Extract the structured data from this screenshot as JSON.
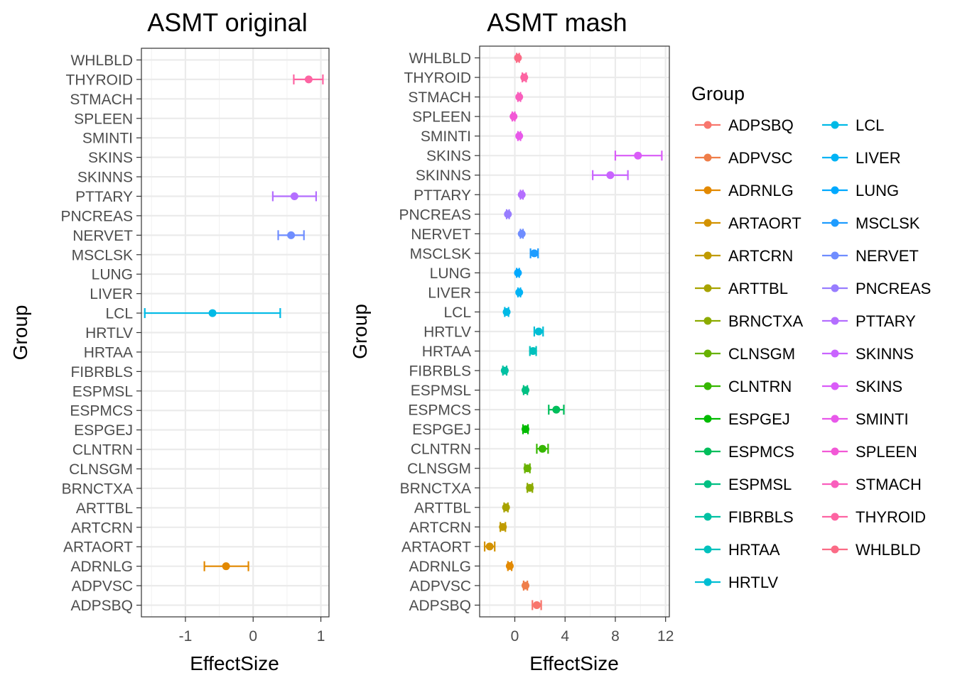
{
  "chart_data": [
    {
      "type": "scatter",
      "title": "ASMT original",
      "xlabel": "EffectSize",
      "ylabel": "Group",
      "xlim": [
        -1.65,
        1.12
      ],
      "xticks": [
        -1,
        0,
        1
      ],
      "xtick_labels": [
        "-1",
        "0",
        "1"
      ],
      "categories": [
        "ADPSBQ",
        "ADPVSC",
        "ADRNLG",
        "ARTAORT",
        "ARTCRN",
        "ARTTBL",
        "BRNCTXA",
        "CLNSGM",
        "CLNTRN",
        "ESPGEJ",
        "ESPMCS",
        "ESPMSL",
        "FIBRBLS",
        "HRTAA",
        "HRTLV",
        "LCL",
        "LIVER",
        "LUNG",
        "MSCLSK",
        "NERVET",
        "PNCREAS",
        "PTTARY",
        "SKINNS",
        "SKINS",
        "SMINTI",
        "SPLEEN",
        "STMACH",
        "THYROID",
        "WHLBLD"
      ],
      "points": [
        {
          "group": "ADRNLG",
          "value": -0.4,
          "lo": -0.72,
          "hi": -0.07
        },
        {
          "group": "LCL",
          "value": -0.6,
          "lo": -1.6,
          "hi": 0.4
        },
        {
          "group": "NERVET",
          "value": 0.56,
          "lo": 0.37,
          "hi": 0.75
        },
        {
          "group": "PTTARY",
          "value": 0.61,
          "lo": 0.29,
          "hi": 0.93
        },
        {
          "group": "THYROID",
          "value": 0.82,
          "lo": 0.6,
          "hi": 1.03
        }
      ]
    },
    {
      "type": "scatter",
      "title": "ASMT mash",
      "xlabel": "EffectSize",
      "ylabel": "Group",
      "xlim": [
        -2.8,
        12.3
      ],
      "xticks": [
        0,
        4,
        8,
        12
      ],
      "xtick_labels": [
        "0",
        "4",
        "8",
        "12"
      ],
      "categories": [
        "ADPSBQ",
        "ADPVSC",
        "ADRNLG",
        "ARTAORT",
        "ARTCRN",
        "ARTTBL",
        "BRNCTXA",
        "CLNSGM",
        "CLNTRN",
        "ESPGEJ",
        "ESPMCS",
        "ESPMSL",
        "FIBRBLS",
        "HRTAA",
        "HRTLV",
        "LCL",
        "LIVER",
        "LUNG",
        "MSCLSK",
        "NERVET",
        "PNCREAS",
        "PTTARY",
        "SKINNS",
        "SKINS",
        "SMINTI",
        "SPLEEN",
        "STMACH",
        "THYROID",
        "WHLBLD"
      ],
      "points": [
        {
          "group": "ADPSBQ",
          "value": 1.75,
          "lo": 1.4,
          "hi": 2.1
        },
        {
          "group": "ADPVSC",
          "value": 0.85,
          "lo": 0.7,
          "hi": 1.0
        },
        {
          "group": "ADRNLG",
          "value": -0.4,
          "lo": -0.55,
          "hi": -0.25
        },
        {
          "group": "ARTAORT",
          "value": -2.0,
          "lo": -2.4,
          "hi": -1.6
        },
        {
          "group": "ARTCRN",
          "value": -0.95,
          "lo": -1.15,
          "hi": -0.75
        },
        {
          "group": "ARTTBL",
          "value": -0.7,
          "lo": -0.85,
          "hi": -0.55
        },
        {
          "group": "BRNCTXA",
          "value": 1.2,
          "lo": 1.0,
          "hi": 1.4
        },
        {
          "group": "CLNSGM",
          "value": 1.0,
          "lo": 0.8,
          "hi": 1.2
        },
        {
          "group": "CLNTRN",
          "value": 2.2,
          "lo": 1.75,
          "hi": 2.65
        },
        {
          "group": "ESPGEJ",
          "value": 0.85,
          "lo": 0.65,
          "hi": 1.05
        },
        {
          "group": "ESPMCS",
          "value": 3.3,
          "lo": 2.7,
          "hi": 3.9
        },
        {
          "group": "ESPMSL",
          "value": 0.85,
          "lo": 0.7,
          "hi": 1.0
        },
        {
          "group": "FIBRBLS",
          "value": -0.8,
          "lo": -0.95,
          "hi": -0.65
        },
        {
          "group": "HRTAA",
          "value": 1.45,
          "lo": 1.2,
          "hi": 1.7
        },
        {
          "group": "HRTLV",
          "value": 1.9,
          "lo": 1.55,
          "hi": 2.25
        },
        {
          "group": "LCL",
          "value": -0.65,
          "lo": -0.8,
          "hi": -0.5
        },
        {
          "group": "LIVER",
          "value": 0.35,
          "lo": 0.25,
          "hi": 0.45
        },
        {
          "group": "LUNG",
          "value": 0.25,
          "lo": 0.15,
          "hi": 0.35
        },
        {
          "group": "MSCLSK",
          "value": 1.55,
          "lo": 1.25,
          "hi": 1.85
        },
        {
          "group": "NERVET",
          "value": 0.55,
          "lo": 0.45,
          "hi": 0.65
        },
        {
          "group": "PNCREAS",
          "value": -0.55,
          "lo": -0.65,
          "hi": -0.45
        },
        {
          "group": "PTTARY",
          "value": 0.55,
          "lo": 0.45,
          "hi": 0.65
        },
        {
          "group": "SKINNS",
          "value": 7.6,
          "lo": 6.2,
          "hi": 9.0
        },
        {
          "group": "SKINS",
          "value": 9.8,
          "lo": 8.0,
          "hi": 11.7
        },
        {
          "group": "SMINTI",
          "value": 0.35,
          "lo": 0.25,
          "hi": 0.45
        },
        {
          "group": "SPLEEN",
          "value": -0.1,
          "lo": -0.2,
          "hi": 0.0
        },
        {
          "group": "STMACH",
          "value": 0.35,
          "lo": 0.25,
          "hi": 0.45
        },
        {
          "group": "THYROID",
          "value": 0.75,
          "lo": 0.6,
          "hi": 0.9
        },
        {
          "group": "WHLBLD",
          "value": 0.25,
          "lo": 0.15,
          "hi": 0.35
        }
      ]
    }
  ],
  "legend": {
    "title": "Group",
    "placement": "right",
    "items": [
      {
        "label": "ADPSBQ",
        "color": "#F8766D"
      },
      {
        "label": "ADPVSC",
        "color": "#EF7E49"
      },
      {
        "label": "ADRNLG",
        "color": "#E38900"
      },
      {
        "label": "ARTAORT",
        "color": "#D39200"
      },
      {
        "label": "ARTCRN",
        "color": "#C09B00"
      },
      {
        "label": "ARTTBL",
        "color": "#A8A300"
      },
      {
        "label": "BRNCTXA",
        "color": "#8CAB00"
      },
      {
        "label": "CLNSGM",
        "color": "#68B200"
      },
      {
        "label": "CLNTRN",
        "color": "#36B700"
      },
      {
        "label": "ESPGEJ",
        "color": "#00BB00"
      },
      {
        "label": "ESPMCS",
        "color": "#00BE5B"
      },
      {
        "label": "ESPMSL",
        "color": "#00C083"
      },
      {
        "label": "FIBRBLS",
        "color": "#00C1A3"
      },
      {
        "label": "HRTAA",
        "color": "#00C1BD"
      },
      {
        "label": "HRTLV",
        "color": "#00BED4"
      },
      {
        "label": "LCL",
        "color": "#00BAE6"
      },
      {
        "label": "LIVER",
        "color": "#00B3F5"
      },
      {
        "label": "LUNG",
        "color": "#00A9FF"
      },
      {
        "label": "MSCLSK",
        "color": "#1E9CFF"
      },
      {
        "label": "NERVET",
        "color": "#6F8DFF"
      },
      {
        "label": "PNCREAS",
        "color": "#987DFF"
      },
      {
        "label": "PTTARY",
        "color": "#B46EFF"
      },
      {
        "label": "SKINNS",
        "color": "#C964FF"
      },
      {
        "label": "SKINS",
        "color": "#DA5CF8"
      },
      {
        "label": "SMINTI",
        "color": "#E858EA"
      },
      {
        "label": "SPLEEN",
        "color": "#F258D6"
      },
      {
        "label": "STMACH",
        "color": "#F95EBD"
      },
      {
        "label": "THYROID",
        "color": "#FD64A2"
      },
      {
        "label": "WHLBLD",
        "color": "#FB6B86"
      }
    ]
  }
}
